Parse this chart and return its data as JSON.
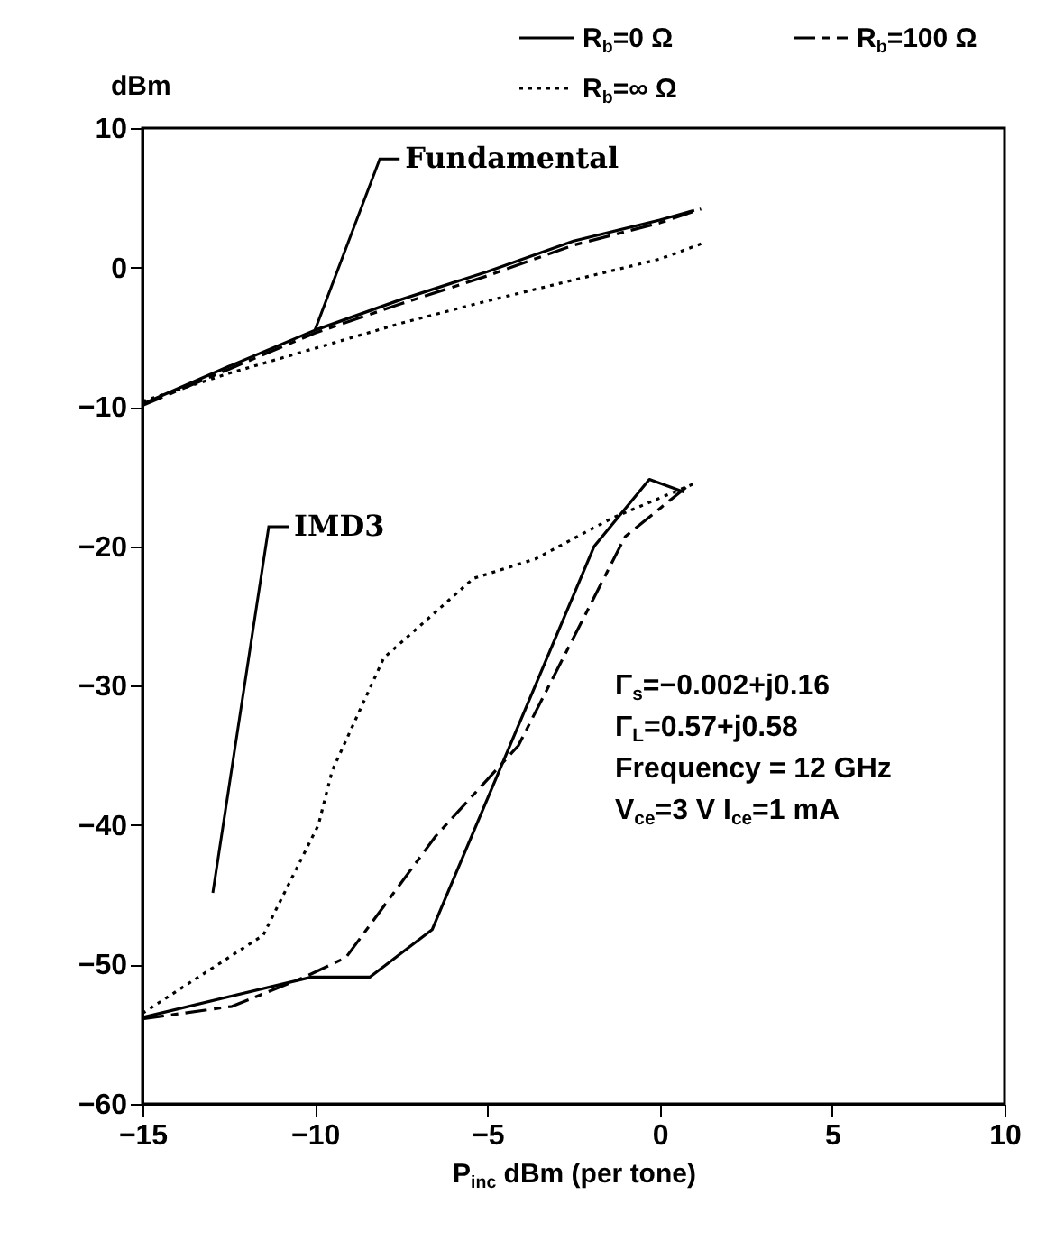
{
  "chart_data": {
    "type": "line",
    "xlabel": "P$_{inc}$ dBm (per tone)",
    "ylabel": "dBm",
    "xlim": [
      -15,
      10
    ],
    "xticks": [
      -15,
      -10,
      -5,
      0,
      5,
      10
    ],
    "ylim": [
      -60,
      10
    ],
    "yticks": [
      -60,
      -50,
      -40,
      -30,
      -20,
      -10,
      0,
      10
    ],
    "grid": false,
    "legend": "top right",
    "annotations": [
      {
        "text": "Fundamental",
        "x": -10,
        "y": -4.5
      },
      "IMD3",
      "Γ$_{s}$=−0.002+j0.16",
      "Γ$_{L}$=0.57+j0.58",
      "Frequency = 12 GHz",
      "V$_{ce}$=3 V I$_{ce}$=1 mA"
    ],
    "series": [
      {
        "name": "R$_{b}$=0 Ω",
        "color": "#000000",
        "line_style": "solid",
        "x": [
          -15,
          -12.5,
          -10,
          -7.5,
          -5,
          -2.5,
          0,
          1
        ],
        "values": [
          -9.8,
          -7.1,
          -4.5,
          -2.3,
          -0.3,
          1.9,
          3.4,
          4.1
        ]
      },
      {
        "name": "R$_{b}$=100 Ω",
        "color": "#000000",
        "line_style": "dashed",
        "x": [
          -15,
          -12.5,
          -10,
          -7.5,
          -5,
          -2.5,
          0,
          1.2
        ],
        "values": [
          -9.9,
          -7.3,
          -4.7,
          -2.6,
          -0.6,
          1.6,
          3.2,
          4.2
        ]
      },
      {
        "name": "R$_{b}$=∞ Ω",
        "color": "#000000",
        "line_style": "dotted",
        "x": [
          -15,
          -12.5,
          -10,
          -7.5,
          -5,
          -2.5,
          0,
          1.2
        ],
        "values": [
          -9.6,
          -7.6,
          -5.8,
          -4.0,
          -2.4,
          -0.9,
          0.6,
          1.7
        ]
      },
      {
        "color": "#000000",
        "line_style": "solid",
        "x": [
          -15,
          -10.1,
          -8.4,
          -6.6,
          -1.9,
          -0.3,
          0.7
        ],
        "values": [
          -53.8,
          -50.9,
          -50.9,
          -47.5,
          -20,
          -15.2,
          -16.1
        ]
      },
      {
        "color": "#000000",
        "line_style": "dashed",
        "x": [
          -15,
          -12.4,
          -10.3,
          -9.1,
          -6.5,
          -4.1,
          -1,
          0.9
        ],
        "values": [
          -53.9,
          -53,
          -50.9,
          -49.5,
          -40.8,
          -34.3,
          -19.3,
          -15.5
        ]
      },
      {
        "color": "#000000",
        "line_style": "dotted",
        "x": [
          -15,
          -11.5,
          -9.9,
          -9.5,
          -8,
          -5.4,
          -3.6,
          -1.4,
          1
        ],
        "values": [
          -53.5,
          -47.9,
          -40,
          -36.1,
          -28,
          -22.3,
          -20.9,
          -18,
          -15.5
        ]
      }
    ]
  }
}
